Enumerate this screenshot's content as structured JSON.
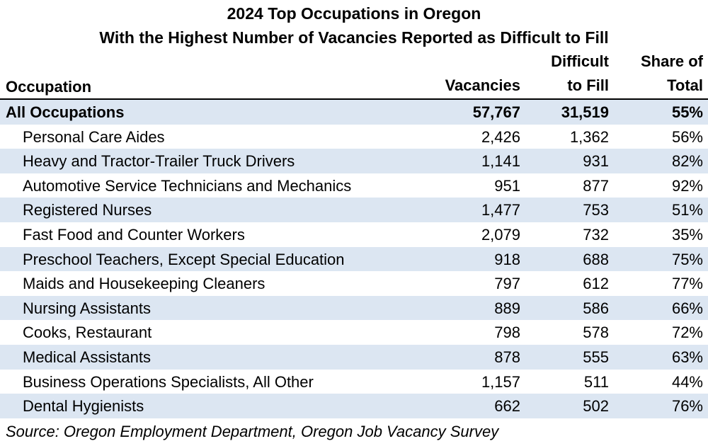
{
  "chart_data": {
    "type": "table",
    "title": "2024 Top Occupations in Oregon",
    "subtitle": "With the Highest Number of Vacancies Reported as Difficult to Fill",
    "columns": {
      "occupation": "Occupation",
      "vacancies": "Vacancies",
      "difficult_line1": "Difficult",
      "difficult_line2": "to Fill",
      "share_line1": "Share of",
      "share_line2": "Total"
    },
    "rows": [
      [
        "All Occupations",
        "57,767",
        "31,519",
        "55%"
      ],
      [
        "Personal Care Aides",
        "2,426",
        "1,362",
        "56%"
      ],
      [
        "Heavy and Tractor-Trailer Truck Drivers",
        "1,141",
        "931",
        "82%"
      ],
      [
        "Automotive Service Technicians and Mechanics",
        "951",
        "877",
        "92%"
      ],
      [
        "Registered Nurses",
        "1,477",
        "753",
        "51%"
      ],
      [
        "Fast Food and Counter Workers",
        "2,079",
        "732",
        "35%"
      ],
      [
        "Preschool Teachers, Except Special Education",
        "918",
        "688",
        "75%"
      ],
      [
        "Maids and Housekeeping Cleaners",
        "797",
        "612",
        "77%"
      ],
      [
        "Nursing Assistants",
        "889",
        "586",
        "66%"
      ],
      [
        "Cooks, Restaurant",
        "798",
        "578",
        "72%"
      ],
      [
        "Medical Assistants",
        "878",
        "555",
        "63%"
      ],
      [
        "Business Operations Specialists, All Other",
        "1,157",
        "511",
        "44%"
      ],
      [
        "Dental Hygienists",
        "662",
        "502",
        "76%"
      ]
    ],
    "source": "Source: Oregon Employment Department, Oregon Job Vacancy Survey",
    "band_color": "#dce6f2"
  }
}
